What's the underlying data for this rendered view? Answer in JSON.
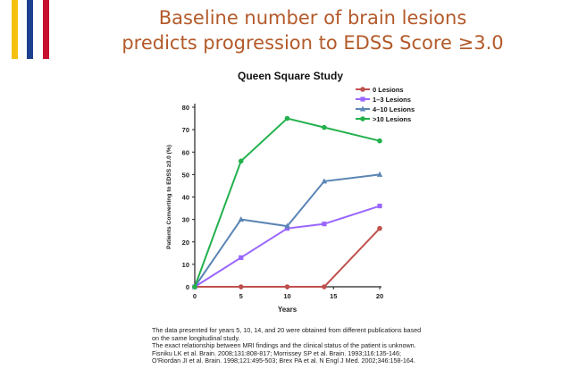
{
  "slide": {
    "title_line1": "Baseline number of brain lesions",
    "title_line2": "predicts progression to EDSS Score ≥3.0",
    "accent_colors": [
      "#f4c20d",
      "#1d3f8f",
      "#c8102e"
    ],
    "title_color": "#b35a2a"
  },
  "chart_data": {
    "type": "line",
    "title": "Queen Square Study",
    "xlabel": "Years",
    "ylabel": "Patients Converting to EDSS ≥3.0 (%)",
    "x": [
      0,
      5,
      10,
      14,
      20
    ],
    "xticks": [
      0,
      5,
      10,
      15,
      20
    ],
    "yticks": [
      0,
      10,
      20,
      30,
      40,
      50,
      60,
      70,
      80
    ],
    "xlim": [
      0,
      20
    ],
    "ylim": [
      0,
      80
    ],
    "legend_position": "top-right",
    "series": [
      {
        "name": "0 Lesions",
        "color": "#c0504d",
        "marker": "circle",
        "values": [
          0,
          0,
          0,
          0,
          26
        ]
      },
      {
        "name": "1–3 Lesions",
        "color": "#9966ff",
        "marker": "square",
        "values": [
          0,
          13,
          26,
          28,
          36
        ]
      },
      {
        "name": "4–10 Lesions",
        "color": "#5b85b5",
        "marker": "triangle",
        "values": [
          0,
          30,
          27,
          47,
          50
        ]
      },
      {
        "name": ">10 Lesions",
        "color": "#22b14c",
        "marker": "circle",
        "values": [
          0,
          56,
          75,
          71,
          65
        ]
      }
    ]
  },
  "footnote": {
    "lines": [
      "The data presented for years 5, 10, 14, and 20 were obtained from different publications based",
      "on the same longitudinal study.",
      "The exact relationship between MRI findings and the clinical status of the patient is unknown.",
      "Fisniku LK et al. Brain. 2008;131:808-817; Morrissey SP et al. Brain. 1993;116:135-146;",
      "O'Riordan JI et al. Brain. 1998;121:495-503; Brex PA et al. N Engl J Med. 2002;346:158-164."
    ]
  }
}
